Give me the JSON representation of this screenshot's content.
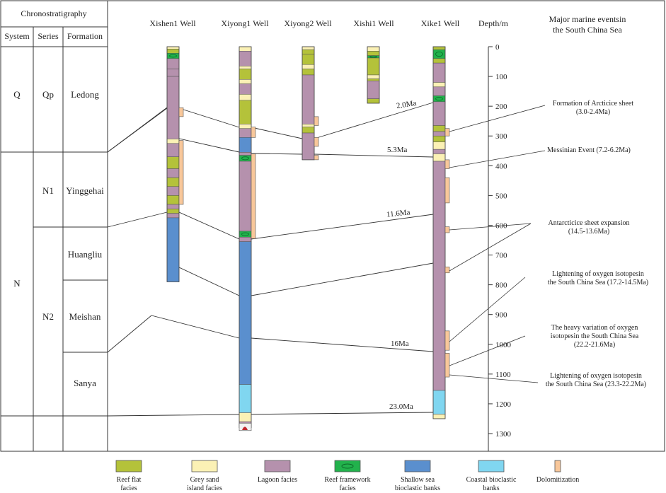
{
  "header": {
    "chronostratigraphy": "Chronostratigraphy",
    "system": "System",
    "series": "Series",
    "formation": "Formation",
    "depth": "Depth/m",
    "events_title": "Major marine eventsin\nthe South China Sea"
  },
  "wells": [
    "Xishen1 Well",
    "Xiyong1 Well",
    "Xiyong2 Well",
    "Xishi1 Well",
    "Xike1 Well"
  ],
  "systems": [
    "Q",
    "N"
  ],
  "series": [
    "Qp",
    "N1",
    "N2"
  ],
  "formations": [
    "Ledong",
    "Yinggehai",
    "Huangliu",
    "Meishan",
    "Sanya"
  ],
  "depth_ticks": [
    "0",
    "100",
    "200",
    "300",
    "400",
    "500",
    "600",
    "700",
    "800",
    "900",
    "1000",
    "1100",
    "1200",
    "1300"
  ],
  "depth_max_m": 1300,
  "ages": [
    "2.0Ma",
    "5.3Ma",
    "11.6Ma",
    "16Ma",
    "23.0Ma"
  ],
  "events": [
    "Formation of Arcticice sheet\n(3.0-2.4Ma)",
    "Messinian Event (7.2-6.2Ma)",
    "Antarcticice sheet expansion\n(14.5-13.6Ma)",
    "Lightening of oxygen isotopesin\nthe South China Sea (17.2-14.5Ma)",
    "The heavy variation of oxygen\nisotopesin the South China Sea\n(22.2-21.6Ma)",
    "Lightening of oxygen isotopesin\nthe South China Sea (23.3-22.2Ma)"
  ],
  "colors": {
    "reef_flat": "#b4c23a",
    "grey_sand": "#fbf1b5",
    "lagoon": "#b591ad",
    "reef_framework": "#22b24c",
    "shallow_sea": "#5a8fce",
    "coastal": "#80d6f0",
    "dolomitization": "#f8c79a"
  },
  "legend": [
    {
      "key": "reef_flat",
      "label": "Reef flat\nfacies"
    },
    {
      "key": "grey_sand",
      "label": "Grey sand\nisland facies"
    },
    {
      "key": "lagoon",
      "label": "Lagoon facies"
    },
    {
      "key": "reef_framework",
      "label": "Reef framework\nfacies"
    },
    {
      "key": "shallow_sea",
      "label": "Shallow sea\nbioclastic banks"
    },
    {
      "key": "coastal",
      "label": "Coastal bioclastic\nbanks"
    },
    {
      "key": "dolomitization",
      "label": "Dolomitization"
    }
  ],
  "well_logs": [
    {
      "well": "Xishen1 Well",
      "layers": [
        {
          "top": 0,
          "bot": 8,
          "facies": "grey_sand"
        },
        {
          "top": 8,
          "bot": 22,
          "facies": "reef_flat"
        },
        {
          "top": 22,
          "bot": 40,
          "facies": "reef_framework"
        },
        {
          "top": 40,
          "bot": 75,
          "facies": "lagoon"
        },
        {
          "top": 75,
          "bot": 100,
          "facies": "lagoon"
        },
        {
          "top": 100,
          "bot": 310,
          "facies": "lagoon"
        },
        {
          "top": 310,
          "bot": 325,
          "facies": "grey_sand"
        },
        {
          "top": 325,
          "bot": 370,
          "facies": "lagoon"
        },
        {
          "top": 370,
          "bot": 410,
          "facies": "reef_flat"
        },
        {
          "top": 410,
          "bot": 440,
          "facies": "lagoon"
        },
        {
          "top": 440,
          "bot": 470,
          "facies": "reef_flat"
        },
        {
          "top": 470,
          "bot": 500,
          "facies": "lagoon"
        },
        {
          "top": 500,
          "bot": 530,
          "facies": "reef_flat"
        },
        {
          "top": 530,
          "bot": 545,
          "facies": "lagoon"
        },
        {
          "top": 545,
          "bot": 560,
          "facies": "reef_flat"
        },
        {
          "top": 560,
          "bot": 575,
          "facies": "lagoon"
        },
        {
          "top": 575,
          "bot": 790,
          "facies": "shallow_sea"
        }
      ],
      "dolomites": [
        {
          "top": 205,
          "bot": 235
        },
        {
          "top": 315,
          "bot": 530
        }
      ]
    },
    {
      "well": "Xiyong1 Well",
      "layers": [
        {
          "top": 0,
          "bot": 15,
          "facies": "grey_sand"
        },
        {
          "top": 15,
          "bot": 65,
          "facies": "lagoon"
        },
        {
          "top": 65,
          "bot": 75,
          "facies": "grey_sand"
        },
        {
          "top": 75,
          "bot": 110,
          "facies": "reef_flat"
        },
        {
          "top": 110,
          "bot": 125,
          "facies": "grey_sand"
        },
        {
          "top": 125,
          "bot": 160,
          "facies": "lagoon"
        },
        {
          "top": 160,
          "bot": 180,
          "facies": "grey_sand"
        },
        {
          "top": 180,
          "bot": 260,
          "facies": "reef_flat"
        },
        {
          "top": 260,
          "bot": 275,
          "facies": "grey_sand"
        },
        {
          "top": 275,
          "bot": 305,
          "facies": "lagoon"
        },
        {
          "top": 305,
          "bot": 355,
          "facies": "shallow_sea"
        },
        {
          "top": 355,
          "bot": 365,
          "facies": "lagoon"
        },
        {
          "top": 365,
          "bot": 385,
          "facies": "reef_framework"
        },
        {
          "top": 385,
          "bot": 620,
          "facies": "lagoon"
        },
        {
          "top": 620,
          "bot": 640,
          "facies": "reef_framework"
        },
        {
          "top": 640,
          "bot": 655,
          "facies": "lagoon"
        },
        {
          "top": 655,
          "bot": 1135,
          "facies": "shallow_sea"
        },
        {
          "top": 1135,
          "bot": 1230,
          "facies": "coastal"
        },
        {
          "top": 1230,
          "bot": 1260,
          "facies": "grey_sand"
        },
        {
          "top": 1260,
          "bot": 1280,
          "facies": "lagoon"
        }
      ],
      "dolomites": [
        {
          "top": 270,
          "bot": 305
        },
        {
          "top": 360,
          "bot": 645
        }
      ]
    },
    {
      "well": "Xiyong2 Well",
      "layers": [
        {
          "top": 0,
          "bot": 10,
          "facies": "grey_sand"
        },
        {
          "top": 10,
          "bot": 25,
          "facies": "reef_flat"
        },
        {
          "top": 25,
          "bot": 60,
          "facies": "reef_flat"
        },
        {
          "top": 60,
          "bot": 75,
          "facies": "grey_sand"
        },
        {
          "top": 75,
          "bot": 95,
          "facies": "reef_flat"
        },
        {
          "top": 95,
          "bot": 260,
          "facies": "lagoon"
        },
        {
          "top": 260,
          "bot": 270,
          "facies": "grey_sand"
        },
        {
          "top": 270,
          "bot": 290,
          "facies": "reef_flat"
        },
        {
          "top": 290,
          "bot": 380,
          "facies": "lagoon"
        }
      ],
      "dolomites": [
        {
          "top": 235,
          "bot": 265
        },
        {
          "top": 305,
          "bot": 335
        },
        {
          "top": 365,
          "bot": 380
        }
      ]
    },
    {
      "well": "Xishi1 Well",
      "layers": [
        {
          "top": 0,
          "bot": 15,
          "facies": "grey_sand"
        },
        {
          "top": 15,
          "bot": 30,
          "facies": "reef_flat"
        },
        {
          "top": 30,
          "bot": 38,
          "facies": "reef_framework"
        },
        {
          "top": 38,
          "bot": 95,
          "facies": "reef_flat"
        },
        {
          "top": 95,
          "bot": 108,
          "facies": "grey_sand"
        },
        {
          "top": 108,
          "bot": 115,
          "facies": "reef_flat"
        },
        {
          "top": 115,
          "bot": 175,
          "facies": "lagoon"
        },
        {
          "top": 175,
          "bot": 190,
          "facies": "reef_flat"
        }
      ],
      "dolomites": []
    },
    {
      "well": "Xike1 Well",
      "layers": [
        {
          "top": 0,
          "bot": 10,
          "facies": "reef_flat"
        },
        {
          "top": 10,
          "bot": 40,
          "facies": "reef_framework"
        },
        {
          "top": 40,
          "bot": 55,
          "facies": "reef_flat"
        },
        {
          "top": 55,
          "bot": 120,
          "facies": "lagoon"
        },
        {
          "top": 120,
          "bot": 135,
          "facies": "grey_sand"
        },
        {
          "top": 135,
          "bot": 165,
          "facies": "lagoon"
        },
        {
          "top": 165,
          "bot": 185,
          "facies": "reef_framework"
        },
        {
          "top": 185,
          "bot": 265,
          "facies": "lagoon"
        },
        {
          "top": 265,
          "bot": 285,
          "facies": "reef_flat"
        },
        {
          "top": 285,
          "bot": 300,
          "facies": "lagoon"
        },
        {
          "top": 300,
          "bot": 320,
          "facies": "reef_flat"
        },
        {
          "top": 320,
          "bot": 345,
          "facies": "grey_sand"
        },
        {
          "top": 345,
          "bot": 360,
          "facies": "lagoon"
        },
        {
          "top": 360,
          "bot": 385,
          "facies": "grey_sand"
        },
        {
          "top": 385,
          "bot": 1155,
          "facies": "lagoon"
        },
        {
          "top": 1155,
          "bot": 1235,
          "facies": "coastal"
        },
        {
          "top": 1235,
          "bot": 1250,
          "facies": "grey_sand"
        }
      ],
      "dolomites": [
        {
          "top": 275,
          "bot": 300
        },
        {
          "top": 380,
          "bot": 410
        },
        {
          "top": 440,
          "bot": 525
        },
        {
          "top": 605,
          "bot": 625
        },
        {
          "top": 740,
          "bot": 760
        },
        {
          "top": 955,
          "bot": 1020
        },
        {
          "top": 1030,
          "bot": 1110
        }
      ]
    }
  ]
}
